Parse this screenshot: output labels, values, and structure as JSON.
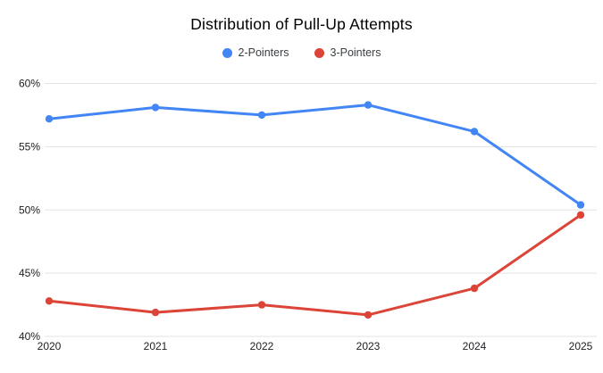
{
  "chart_data": {
    "type": "line",
    "title": "Distribution of Pull-Up Attempts",
    "categories": [
      "2020",
      "2021",
      "2022",
      "2023",
      "2024",
      "2025"
    ],
    "series": [
      {
        "name": "2-Pointers",
        "color": "#4285F4",
        "values": [
          57.2,
          58.1,
          57.5,
          58.3,
          56.2,
          50.4
        ]
      },
      {
        "name": "3-Pointers",
        "color": "#DB4437",
        "values": [
          42.8,
          41.9,
          42.5,
          41.7,
          43.8,
          49.6
        ]
      }
    ],
    "xlabel": "",
    "ylabel": "",
    "ylim": [
      40,
      60
    ],
    "ytick_step": 5,
    "ytick_labels": [
      "40%",
      "45%",
      "50%",
      "55%",
      "60%"
    ],
    "grid": "horizontal-only",
    "legend_position": "top",
    "colors": {
      "background": "#FFFFFF",
      "grid": "#E3E3E3",
      "axis_text": "#202124",
      "legend_text": "#3C4043",
      "title_text": "#000000"
    }
  }
}
